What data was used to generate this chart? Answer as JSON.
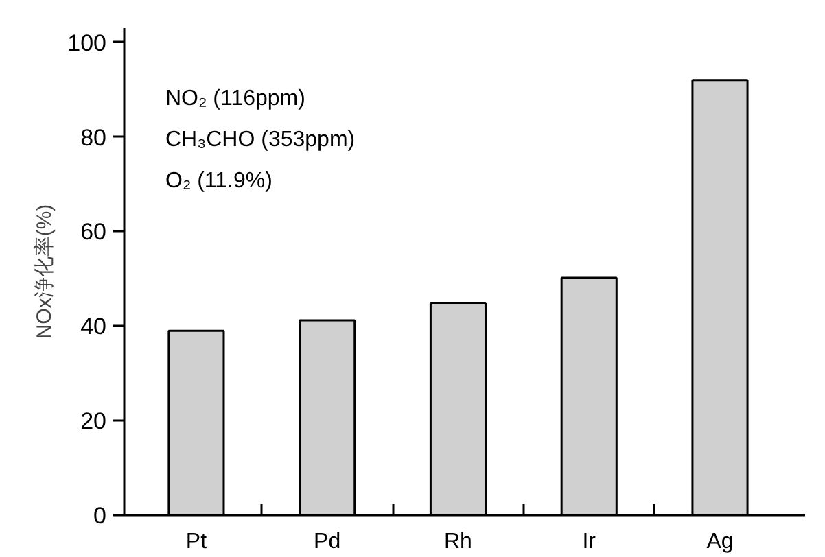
{
  "chart_data": {
    "type": "bar",
    "ylabel": "NOx浄化率(%)",
    "categories": [
      "Pt",
      "Pd",
      "Rh",
      "Ir",
      "Ag"
    ],
    "values": [
      39,
      41.2,
      44.9,
      50.2,
      92
    ],
    "color": "#d0d0d0",
    "ylim": [
      0,
      103
    ],
    "yticks": [
      0,
      20,
      40,
      60,
      80,
      100
    ],
    "annotations": [
      "NO₂ (116ppm)",
      "CH₃CHO (353ppm)",
      "O₂ (11.9%)"
    ],
    "grid": false
  }
}
